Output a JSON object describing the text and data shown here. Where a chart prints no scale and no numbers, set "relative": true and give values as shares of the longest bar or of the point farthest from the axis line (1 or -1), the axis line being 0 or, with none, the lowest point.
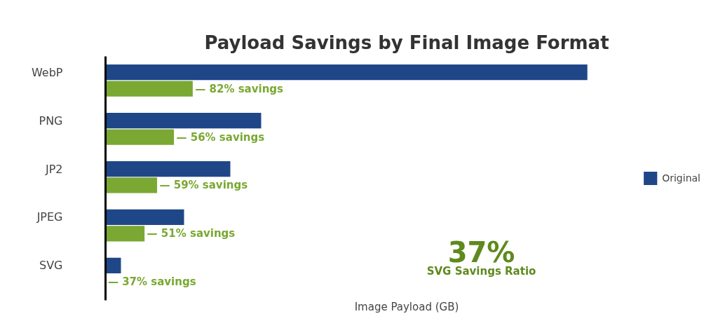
{
  "chart_data": {
    "type": "bar",
    "orientation": "horizontal",
    "relative": true,
    "title": "Payload Savings by Final Image Format",
    "xlabel": "Image Payload (GB)",
    "categories": [
      "WebP",
      "PNG",
      "JP2",
      "JPEG",
      "SVG"
    ],
    "series": [
      {
        "name": "Original",
        "color": "#1f4788",
        "values": [
          1,
          0.323,
          0.259,
          0.163,
          0.032
        ]
      },
      {
        "color": "#7aa832",
        "values": [
          0.181,
          0.142,
          0.107,
          0.081,
          null
        ]
      }
    ],
    "legend": "right",
    "annotations": [
      "— 82% savings",
      "— 56% savings",
      "— 59% savings",
      "— 51% savings",
      "— 37% savings",
      "37%",
      "SVG Savings Ratio"
    ]
  }
}
